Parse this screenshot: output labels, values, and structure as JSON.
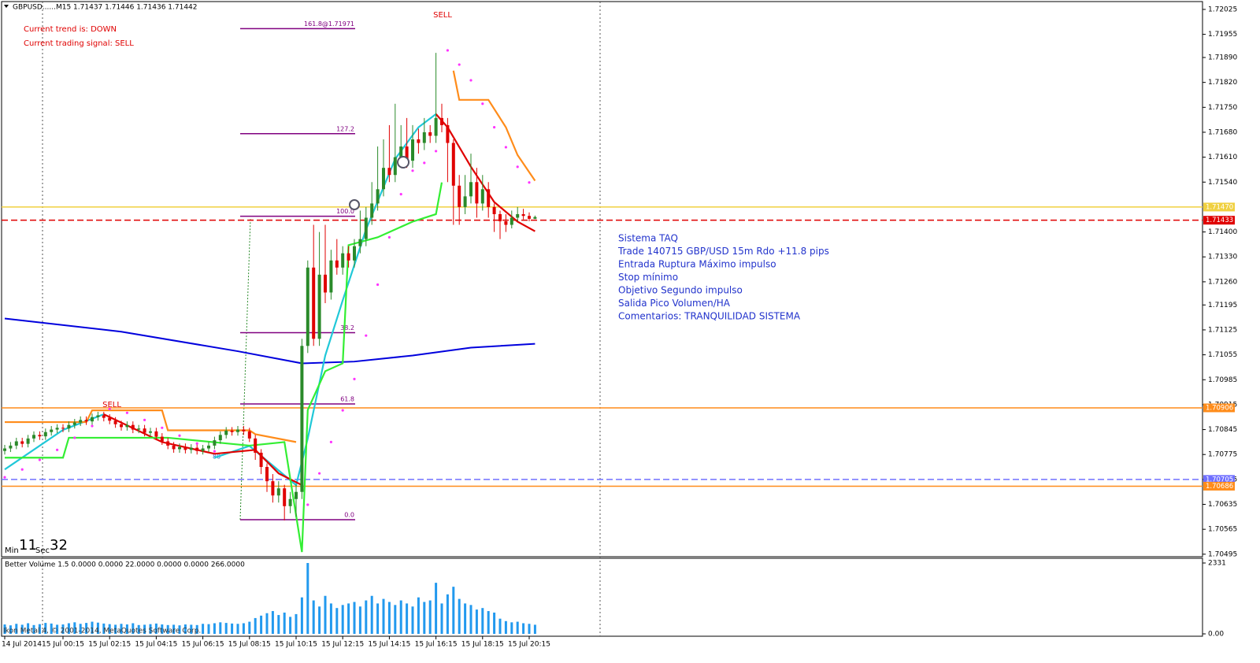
{
  "chart_data": [
    {
      "type": "candlestick",
      "title": "GBPUSD......M15  1.71437 1.71446 1.71436 1.71442",
      "categories": [
        "14 Jul 2014",
        null,
        null,
        null,
        null,
        null,
        null,
        null,
        null,
        null,
        "15 Jul 00:15",
        null,
        null,
        null,
        null,
        null,
        null,
        null,
        "15 Jul 02:15",
        null,
        null,
        null,
        null,
        null,
        null,
        null,
        "15 Jul 04:15",
        null,
        null,
        null,
        null,
        null,
        null,
        null,
        "15 Jul 06:15",
        null,
        null,
        null,
        null,
        null,
        null,
        null,
        "15 Jul 08:15",
        null,
        null,
        null,
        null,
        null,
        null,
        null,
        "15 Jul 10:15",
        null,
        null,
        null,
        null,
        null,
        null,
        null,
        "15 Jul 12:15",
        null,
        null,
        null,
        null,
        null,
        null,
        null,
        "15 Jul 14:15",
        null,
        null,
        null,
        null,
        null,
        null,
        null,
        "15 Jul 16:15",
        null,
        null,
        null,
        null,
        null,
        null,
        null,
        "15 Jul 18:15",
        null,
        null,
        null,
        null,
        null,
        null,
        null,
        "15 Jul 20:15",
        null
      ],
      "open": [
        1.70785,
        1.70792,
        1.708,
        1.70812,
        1.70805,
        1.7082,
        1.7083,
        1.70826,
        1.70838,
        1.70845,
        1.7085,
        1.70848,
        1.70858,
        1.70865,
        1.70872,
        1.70868,
        1.7088,
        1.70885,
        1.70878,
        1.7087,
        1.7086,
        1.70852,
        1.70858,
        1.70845,
        1.70848,
        1.70836,
        1.7084,
        1.70825,
        1.70812,
        1.708,
        1.7079,
        1.70796,
        1.70788,
        1.70794,
        1.70785,
        1.70792,
        1.708,
        1.70815,
        1.7083,
        1.70842,
        1.70838,
        1.70845,
        1.7084,
        1.7082,
        1.7078,
        1.7074,
        1.707,
        1.7066,
        1.7068,
        1.7063,
        1.7065,
        1.7067,
        1.7108,
        1.713,
        1.711,
        1.7128,
        1.7123,
        1.7132,
        1.713,
        1.7134,
        1.7132,
        1.7136,
        1.7138,
        1.7144,
        1.7148,
        1.7152,
        1.7158,
        1.7156,
        1.7161,
        1.7164,
        1.716,
        1.7166,
        1.7165,
        1.7168,
        1.7167,
        1.7172,
        1.717,
        1.7165,
        1.7153,
        1.7147,
        1.715,
        1.7154,
        1.7148,
        1.7152,
        1.7147,
        1.7145,
        1.7143,
        1.7142,
        1.7144,
        1.7145,
        1.71445,
        1.71437
      ],
      "high": [
        1.70802,
        1.7081,
        1.70822,
        1.70822,
        1.7083,
        1.7084,
        1.7084,
        1.70848,
        1.70855,
        1.7086,
        1.7086,
        1.70868,
        1.70875,
        1.70882,
        1.70882,
        1.7089,
        1.70895,
        1.70895,
        1.70888,
        1.7088,
        1.7087,
        1.70868,
        1.70868,
        1.70858,
        1.70858,
        1.7085,
        1.7085,
        1.70835,
        1.70822,
        1.7081,
        1.70806,
        1.70806,
        1.70804,
        1.70804,
        1.70802,
        1.7081,
        1.70825,
        1.7084,
        1.70852,
        1.70852,
        1.70855,
        1.70855,
        1.7085,
        1.7083,
        1.7079,
        1.7075,
        1.7072,
        1.707,
        1.7069,
        1.7067,
        1.7069,
        1.711,
        1.7132,
        1.7142,
        1.714,
        1.7142,
        1.7135,
        1.7138,
        1.7136,
        1.7136,
        1.7138,
        1.7146,
        1.7147,
        1.7154,
        1.7164,
        1.7166,
        1.717,
        1.7176,
        1.717,
        1.7172,
        1.717,
        1.7169,
        1.7172,
        1.717,
        1.71903,
        1.7176,
        1.7172,
        1.7166,
        1.7156,
        1.7156,
        1.7162,
        1.7158,
        1.7156,
        1.7154,
        1.7148,
        1.7146,
        1.7145,
        1.7146,
        1.7147,
        1.71465,
        1.71455,
        1.71446
      ],
      "low": [
        1.70775,
        1.70782,
        1.7079,
        1.70795,
        1.70795,
        1.7081,
        1.70816,
        1.70816,
        1.70828,
        1.70835,
        1.70838,
        1.70838,
        1.70848,
        1.70855,
        1.70858,
        1.70858,
        1.7087,
        1.70868,
        1.7086,
        1.7085,
        1.70842,
        1.70842,
        1.70835,
        1.70835,
        1.70826,
        1.70826,
        1.70815,
        1.70802,
        1.7079,
        1.7078,
        1.7078,
        1.70778,
        1.70778,
        1.70775,
        1.70775,
        1.70782,
        1.7079,
        1.70805,
        1.7082,
        1.70828,
        1.70828,
        1.7083,
        1.7081,
        1.7076,
        1.7072,
        1.7067,
        1.7064,
        1.7064,
        1.7059,
        1.7061,
        1.706,
        1.7065,
        1.7106,
        1.7108,
        1.7108,
        1.712,
        1.7121,
        1.7128,
        1.7128,
        1.713,
        1.713,
        1.7134,
        1.7136,
        1.7142,
        1.7146,
        1.715,
        1.7154,
        1.7154,
        1.7159,
        1.7158,
        1.7158,
        1.7162,
        1.7163,
        1.7165,
        1.7165,
        1.7168,
        1.7154,
        1.7142,
        1.7142,
        1.7145,
        1.7148,
        1.7144,
        1.7146,
        1.7144,
        1.714,
        1.7138,
        1.714,
        1.7141,
        1.7143,
        1.71435,
        1.7143,
        1.71436
      ],
      "close": [
        1.70792,
        1.708,
        1.70812,
        1.70805,
        1.7082,
        1.7083,
        1.70826,
        1.70838,
        1.70845,
        1.7085,
        1.70848,
        1.70858,
        1.70865,
        1.70872,
        1.70868,
        1.7088,
        1.70885,
        1.70878,
        1.7087,
        1.7086,
        1.70852,
        1.70858,
        1.70845,
        1.70848,
        1.70836,
        1.7084,
        1.70825,
        1.70812,
        1.708,
        1.7079,
        1.70796,
        1.70788,
        1.70794,
        1.70785,
        1.70792,
        1.708,
        1.70815,
        1.7083,
        1.70842,
        1.70838,
        1.70845,
        1.7084,
        1.7082,
        1.7078,
        1.7074,
        1.707,
        1.7066,
        1.7068,
        1.7063,
        1.7065,
        1.7067,
        1.7108,
        1.713,
        1.711,
        1.7128,
        1.7123,
        1.7132,
        1.713,
        1.7134,
        1.7132,
        1.7136,
        1.7138,
        1.7144,
        1.7148,
        1.7152,
        1.7158,
        1.7156,
        1.7161,
        1.7164,
        1.716,
        1.7166,
        1.7165,
        1.7168,
        1.7167,
        1.7172,
        1.717,
        1.7165,
        1.7153,
        1.7147,
        1.715,
        1.7154,
        1.7148,
        1.7152,
        1.7147,
        1.7145,
        1.7143,
        1.7142,
        1.7144,
        1.7145,
        1.71445,
        1.71437,
        1.71442
      ],
      "up_color": "#2a8a2a",
      "down_color": "#e00000",
      "ylim": [
        1.70488,
        1.72047
      ],
      "yticks": [
        1.72025,
        1.71955,
        {
          "value": 1.7189,
          "label": "1.71890"
        },
        {
          "value": 1.7182,
          "label": "1.71820"
        },
        {
          "value": 1.7175,
          "label": "1.71750"
        },
        {
          "value": 1.7168,
          "label": "1.71680"
        },
        {
          "value": 1.7161,
          "label": "1.71610"
        },
        {
          "value": 1.7154,
          "label": "1.71540"
        },
        {
          "value": 1.714,
          "label": "1.71400"
        },
        {
          "value": 1.7133,
          "label": "1.71330"
        },
        {
          "value": 1.7126,
          "label": "1.71260"
        },
        1.71195,
        1.71125,
        1.71055,
        1.70985,
        1.70915,
        1.70845,
        1.70775,
        1.70705,
        1.70635,
        1.70565,
        1.70495
      ],
      "lines": [
        {
          "color": "#0000dd",
          "x": [
            0,
            20,
            40,
            51,
            60,
            70,
            80,
            91
          ],
          "values": [
            1.71157,
            1.7112,
            1.71065,
            1.71031,
            1.71036,
            1.71053,
            1.71075,
            1.71086
          ]
        },
        {
          "color": "#20c8d8",
          "x": [
            0,
            10,
            17,
            24,
            36,
            42,
            50,
            52,
            55,
            58,
            62,
            67,
            71,
            74
          ],
          "values": [
            1.70733,
            1.70844,
            1.70888,
            null,
            1.70766,
            1.70799,
            1.70689,
            1.7082,
            1.71053,
            1.71208,
            1.71407,
            1.71605,
            1.71694,
            1.71731
          ]
        },
        {
          "color": "#e00000",
          "x": [
            17,
            27,
            36,
            43,
            47,
            51,
            60,
            74,
            76,
            80,
            84,
            88,
            91
          ],
          "values": [
            1.70888,
            1.7081,
            1.70777,
            1.70788,
            1.70722,
            1.70689,
            null,
            1.71731,
            1.71694,
            1.71583,
            1.71484,
            1.71429,
            1.71402
          ]
        },
        {
          "color": "#33ee33",
          "x": [
            0,
            10,
            11,
            27,
            28,
            35,
            42,
            48,
            51,
            52,
            55,
            58,
            59,
            64,
            70,
            74,
            75
          ],
          "values": [
            1.70766,
            1.70766,
            1.70822,
            1.70822,
            1.70822,
            1.70811,
            1.708,
            1.7081,
            1.70501,
            1.709,
            1.71009,
            1.71031,
            1.71363,
            1.71385,
            1.71429,
            1.7145,
            1.71539
          ]
        },
        {
          "color": "#ff8c1a",
          "x": [
            0,
            14,
            15,
            27,
            28,
            42,
            43,
            50,
            60,
            77,
            78,
            83,
            86,
            88,
            91
          ],
          "values": [
            1.70866,
            1.70866,
            1.70899,
            1.70899,
            1.70843,
            1.70843,
            1.70832,
            1.7081,
            null,
            1.71853,
            1.71771,
            1.71771,
            1.71694,
            1.71616,
            1.71544
          ]
        }
      ],
      "sar": {
        "color": "#ff33ff",
        "x": [
          0,
          3,
          6,
          9,
          12,
          15,
          18,
          21,
          24,
          27,
          30,
          33,
          36,
          52,
          54,
          56,
          58,
          60,
          62,
          64,
          66,
          68,
          70,
          72,
          74,
          76,
          78,
          80,
          82,
          84,
          86,
          88,
          90
        ],
        "values": [
          1.70711,
          1.70733,
          1.7076,
          1.70788,
          1.70822,
          1.70855,
          1.70903,
          1.70892,
          1.70872,
          1.7085,
          1.70828,
          1.70806,
          1.70784,
          1.70634,
          1.70722,
          1.7081,
          1.70899,
          1.70987,
          1.71109,
          1.71252,
          1.71385,
          1.71506,
          1.71572,
          1.71594,
          1.71627,
          1.7191,
          1.7187,
          1.71826,
          1.7176,
          1.71694,
          1.71638,
          1.71583,
          1.71539
        ]
      },
      "fib": [
        {
          "label": "161.8@1.71971",
          "value": 1.71971
        },
        {
          "label": "127.2",
          "value": 1.71676
        },
        {
          "label": "100.0",
          "value": 1.71444
        },
        {
          "label": "38.2",
          "value": 1.71117
        },
        {
          "label": "61.8",
          "value": 1.70917
        },
        {
          "label": "0.0",
          "value": 1.70592
        }
      ],
      "fib_color": "#800080",
      "hlines": [
        {
          "value": 1.7147,
          "label": "1.71470",
          "color": "#f0d040",
          "dashed": false
        },
        {
          "value": 1.71433,
          "color": "#e00000",
          "dashed": true
        },
        {
          "value": 1.70906,
          "color": "#ff8c1a",
          "dashed": false
        },
        {
          "value": 1.70705,
          "color": "#7070ff",
          "dashed": true
        },
        {
          "value": 1.70686,
          "color": "#ff8c1a",
          "dashed": false
        }
      ],
      "trend": "Current trend is: DOWN",
      "signal": "Current trading signal: SELL",
      "sell_labels": [
        "SELL",
        "SELL"
      ],
      "small_label": "80",
      "timer": {
        "min_label": "Min",
        "min": "11",
        "sec_label": "Sec",
        "sec": "32"
      },
      "note_lines": [
        "Sistema TAQ",
        "Trade 140715 GBP/USD 15m Rdo +11.8 pips",
        "Entrada Ruptura Máximo impulso",
        "Stop mínimo",
        "Objetivo Segundo impulso",
        "Salida Pico Volumen/HA",
        "Comentarios: TRANQUILIDAD SISTEMA"
      ]
    },
    {
      "type": "bar",
      "title": "Better Volume 1.5 0.0000 0.0000 22.0000 0.0000 0.0000 266.0000",
      "footer": "Ikon Metal 4, © 2001-2014, MetaQuotes Software Corp.",
      "color": "#2299ee",
      "values": [
        310,
        280,
        330,
        300,
        350,
        290,
        320,
        360,
        340,
        300,
        310,
        350,
        380,
        330,
        360,
        400,
        370,
        340,
        320,
        300,
        330,
        310,
        350,
        290,
        300,
        320,
        340,
        310,
        290,
        300,
        280,
        310,
        300,
        290,
        330,
        320,
        350,
        380,
        360,
        340,
        330,
        350,
        400,
        520,
        600,
        680,
        750,
        620,
        700,
        560,
        650,
        1200,
        2331,
        1100,
        900,
        1250,
        1000,
        850,
        950,
        1000,
        1050,
        900,
        1100,
        1250,
        1000,
        1150,
        1050,
        950,
        1100,
        1000,
        900,
        1200,
        1050,
        1100,
        1680,
        1000,
        1300,
        1550,
        1150,
        1000,
        950,
        800,
        850,
        750,
        700,
        500,
        420,
        380,
        400,
        350,
        330,
        300
      ],
      "ylim": [
        0,
        2331
      ],
      "yticks": [
        2331,
        {
          "value": 0,
          "label": "0.00"
        }
      ]
    }
  ]
}
